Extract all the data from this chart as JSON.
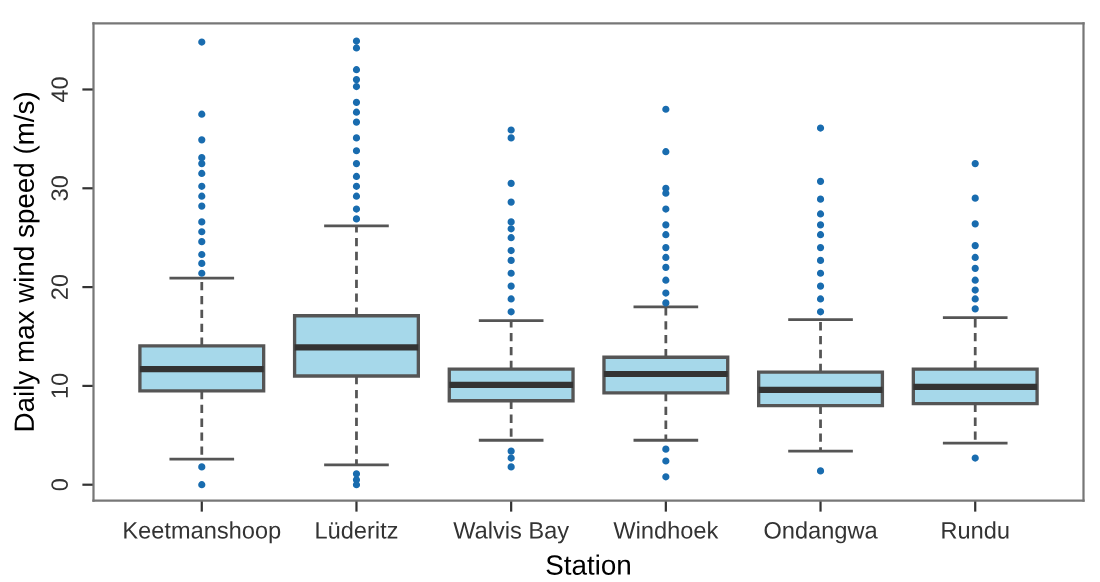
{
  "chart_data": {
    "type": "box",
    "xlabel": "Station",
    "ylabel": "Daily max wind speed (m/s)",
    "categories": [
      "Keetmanshoop",
      "Lüderitz",
      "Walvis Bay",
      "Windhoek",
      "Ondangwa",
      "Rundu"
    ],
    "color": "#a6d8ea",
    "boxes": [
      {
        "low": 2.6,
        "q1": 9.5,
        "median": 11.7,
        "q3": 14.05,
        "high": 20.9,
        "outliers": [
          44.8,
          37.5,
          34.9,
          33.1,
          32.5,
          31.5,
          30.2,
          29.2,
          28.2,
          26.6,
          25.6,
          24.6,
          23.3,
          22.4,
          21.4,
          1.8,
          0
        ]
      },
      {
        "low": 2.0,
        "q1": 11.0,
        "median": 13.9,
        "q3": 17.1,
        "high": 26.2,
        "outliers": [
          44.9,
          44.2,
          42.0,
          41.0,
          40.3,
          38.7,
          37.7,
          36.7,
          35.1,
          33.8,
          32.5,
          31.2,
          30.2,
          29.2,
          27.9,
          26.9,
          1.1,
          0.5,
          0
        ]
      },
      {
        "low": 4.5,
        "q1": 8.5,
        "median": 10.1,
        "q3": 11.7,
        "high": 16.6,
        "outliers": [
          35.9,
          35.1,
          30.5,
          28.6,
          26.6,
          25.9,
          25.0,
          23.7,
          22.7,
          21.4,
          20.1,
          18.8,
          17.5,
          3.4,
          2.7,
          1.8
        ]
      },
      {
        "low": 4.5,
        "q1": 9.3,
        "median": 11.2,
        "q3": 12.9,
        "high": 18.0,
        "outliers": [
          38.0,
          33.7,
          30.0,
          29.5,
          27.9,
          26.3,
          25.3,
          24.0,
          23.0,
          22.0,
          20.7,
          19.4,
          18.4,
          3.6,
          2.4,
          0.8
        ]
      },
      {
        "low": 3.4,
        "q1": 8.0,
        "median": 9.6,
        "q3": 11.4,
        "high": 16.7,
        "outliers": [
          36.1,
          30.7,
          28.9,
          27.4,
          26.3,
          25.3,
          24.0,
          22.7,
          21.4,
          20.1,
          18.8,
          17.5,
          1.4
        ]
      },
      {
        "low": 4.2,
        "q1": 8.2,
        "median": 9.9,
        "q3": 11.7,
        "high": 16.9,
        "outliers": [
          32.5,
          29.0,
          26.4,
          24.2,
          23.0,
          21.9,
          20.7,
          19.7,
          18.8,
          17.8,
          2.7
        ]
      }
    ],
    "ylim": [
      -1.6,
      46.7
    ],
    "yticks": [
      0,
      10,
      20,
      30,
      40
    ],
    "grid": false,
    "legend": false
  }
}
